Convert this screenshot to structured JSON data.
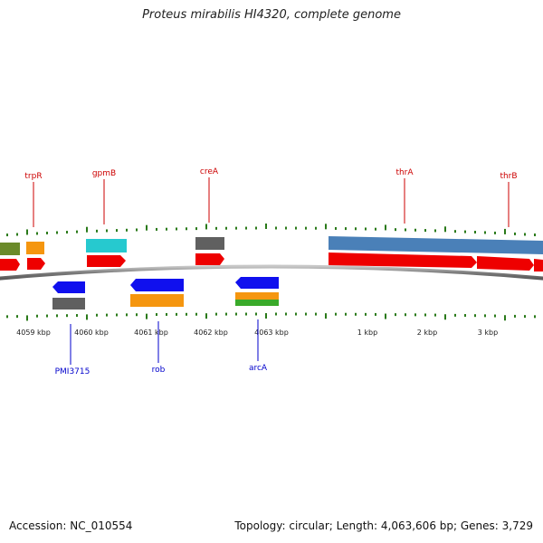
{
  "title": "Proteus mirabilis HI4320, complete genome",
  "footer": {
    "accession": "Accession: NC_010554",
    "stats": "Topology: circular; Length: 4,063,606 bp; Genes: 3,729"
  },
  "colors": {
    "forward_cds": "#ff0000",
    "reverse_cds": "#0000ff",
    "label_top": "#cc0000",
    "label_bottom": "#0000cc",
    "tick": "#2a7a1a",
    "backbone": "#888888"
  },
  "ticks": [
    {
      "label": "4059 kbp"
    },
    {
      "label": "4060 kbp"
    },
    {
      "label": "4061 kbp"
    },
    {
      "label": "4062 kbp"
    },
    {
      "label": "4063 kbp"
    },
    {
      "label": "1 kbp"
    },
    {
      "label": "2 kbp"
    },
    {
      "label": "3 kbp"
    }
  ],
  "genes_top": [
    {
      "label": "trpR"
    },
    {
      "label": "gpmB"
    },
    {
      "label": "creA"
    },
    {
      "label": "thrA"
    },
    {
      "label": "thrB"
    }
  ],
  "genes_bottom": [
    {
      "label": "PMI3715"
    },
    {
      "label": "rob"
    },
    {
      "label": "arcA"
    }
  ]
}
